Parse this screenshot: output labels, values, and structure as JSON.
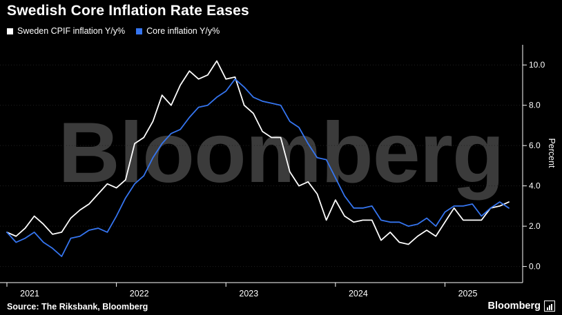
{
  "title": "Swedish Core Inflation Rate Eases",
  "watermark": "Bloomberg",
  "source": "Source: The Riksbank, Bloomberg",
  "logo_text": "Bloomberg",
  "legend": [
    {
      "label": "Sweden CPIF inflation Y/y%",
      "color": "#ffffff"
    },
    {
      "label": "Core inflation Y/y%",
      "color": "#3575f0"
    }
  ],
  "colors": {
    "background": "#000000",
    "axis": "#ffffff",
    "watermark": "#3b3b3b",
    "accent_blue": "#3575f0"
  },
  "chart_data": {
    "type": "line",
    "title": "Swedish Core Inflation Rate Eases",
    "xlabel": "",
    "ylabel": "Percent",
    "ylim": [
      -0.8,
      11
    ],
    "yticks": [
      0,
      2,
      4,
      6,
      8,
      10
    ],
    "grid": false,
    "legend_position": "top-left",
    "x": [
      "2021-01",
      "2021-02",
      "2021-03",
      "2021-04",
      "2021-05",
      "2021-06",
      "2021-07",
      "2021-08",
      "2021-09",
      "2021-10",
      "2021-11",
      "2021-12",
      "2022-01",
      "2022-02",
      "2022-03",
      "2022-04",
      "2022-05",
      "2022-06",
      "2022-07",
      "2022-08",
      "2022-09",
      "2022-10",
      "2022-11",
      "2022-12",
      "2023-01",
      "2023-02",
      "2023-03",
      "2023-04",
      "2023-05",
      "2023-06",
      "2023-07",
      "2023-08",
      "2023-09",
      "2023-10",
      "2023-11",
      "2023-12",
      "2024-01",
      "2024-02",
      "2024-03",
      "2024-04",
      "2024-05",
      "2024-06",
      "2024-07",
      "2024-08",
      "2024-09",
      "2024-10",
      "2024-11",
      "2024-12",
      "2025-01",
      "2025-02",
      "2025-03",
      "2025-04",
      "2025-05",
      "2025-06",
      "2025-07",
      "2025-08"
    ],
    "x_year_labels": [
      "2021",
      "2022",
      "2023",
      "2024",
      "2025"
    ],
    "series": [
      {
        "name": "Sweden CPIF inflation Y/y%",
        "color": "#ffffff",
        "values": [
          1.7,
          1.5,
          1.9,
          2.5,
          2.1,
          1.6,
          1.7,
          2.4,
          2.8,
          3.1,
          3.6,
          4.1,
          3.9,
          4.3,
          6.1,
          6.4,
          7.2,
          8.5,
          8.0,
          9.0,
          9.7,
          9.3,
          9.5,
          10.2,
          9.3,
          9.4,
          8.0,
          7.6,
          6.7,
          6.4,
          6.4,
          4.7,
          4.0,
          4.2,
          3.6,
          2.3,
          3.3,
          2.5,
          2.2,
          2.3,
          2.3,
          1.3,
          1.7,
          1.2,
          1.1,
          1.5,
          1.8,
          1.5,
          2.2,
          2.9,
          2.3,
          2.3,
          2.3,
          2.9,
          3.0,
          3.2
        ]
      },
      {
        "name": "Core inflation Y/y%",
        "color": "#3575f0",
        "values": [
          1.7,
          1.2,
          1.4,
          1.7,
          1.2,
          0.9,
          0.5,
          1.4,
          1.5,
          1.8,
          1.9,
          1.7,
          2.5,
          3.4,
          4.1,
          4.5,
          5.4,
          6.1,
          6.6,
          6.8,
          7.4,
          7.9,
          8.0,
          8.4,
          8.7,
          9.3,
          8.9,
          8.4,
          8.2,
          8.1,
          8.0,
          7.2,
          6.9,
          6.1,
          5.4,
          5.3,
          4.4,
          3.5,
          2.9,
          2.9,
          3.0,
          2.3,
          2.2,
          2.2,
          2.0,
          2.1,
          2.4,
          2.0,
          2.7,
          3.0,
          3.0,
          3.1,
          2.5,
          2.9,
          3.2,
          2.9
        ]
      }
    ]
  }
}
